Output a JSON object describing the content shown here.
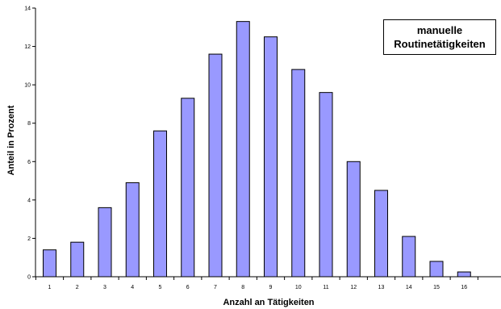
{
  "chart_data": {
    "type": "bar",
    "categories": [
      "1",
      "2",
      "3",
      "4",
      "5",
      "6",
      "7",
      "8",
      "9",
      "10",
      "11",
      "12",
      "13",
      "14",
      "15",
      "16"
    ],
    "values": [
      1.4,
      1.8,
      3.6,
      4.9,
      7.6,
      9.3,
      11.6,
      13.3,
      12.5,
      10.8,
      9.6,
      6.0,
      4.5,
      2.1,
      0.8,
      0.25
    ],
    "xlabel": "Anzahl an Tätigkeiten",
    "ylabel": "Anteil in Prozent",
    "ylim": [
      0,
      14
    ],
    "yticks": [
      "0",
      "2",
      "4",
      "6",
      "8",
      "10",
      "12",
      "14"
    ],
    "grid": false,
    "bar_color": "#9999ff",
    "legend": {
      "line1": "manuelle",
      "line2": "Routinetätigkeiten",
      "placement": "top-right"
    }
  }
}
